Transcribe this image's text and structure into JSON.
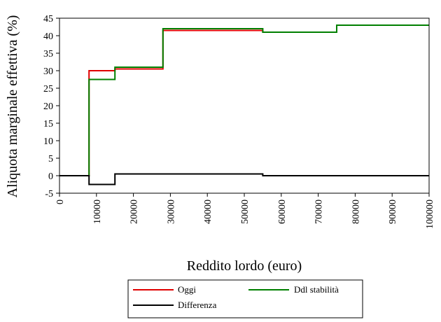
{
  "chart_data": {
    "type": "line",
    "step": true,
    "title": "",
    "xlabel": "Reddito lordo (euro)",
    "ylabel": "Aliquota marginale effettiva (%)",
    "xlim": [
      0,
      100000
    ],
    "ylim": [
      -5,
      45
    ],
    "x_ticks": [
      0,
      10000,
      20000,
      30000,
      40000,
      50000,
      60000,
      70000,
      80000,
      90000,
      100000
    ],
    "y_ticks": [
      -5,
      0,
      5,
      10,
      15,
      20,
      25,
      30,
      35,
      40,
      45
    ],
    "grid": false,
    "legend_position": "bottom",
    "series": [
      {
        "name": "Oggi",
        "color": "#e00000",
        "x": [
          0,
          8000,
          8000,
          15000,
          15000,
          28000,
          28000,
          55000,
          55000,
          75000,
          75000,
          100000
        ],
        "y": [
          0,
          0,
          30,
          30,
          30.5,
          30.5,
          41.5,
          41.5,
          41,
          41,
          43,
          43
        ]
      },
      {
        "name": "Ddl stabilità",
        "color": "#008000",
        "x": [
          0,
          8000,
          8000,
          15000,
          15000,
          28000,
          28000,
          55000,
          55000,
          75000,
          75000,
          100000
        ],
        "y": [
          0,
          0,
          27.5,
          27.5,
          31,
          31,
          42,
          42,
          41,
          41,
          43,
          43
        ]
      },
      {
        "name": "Differenza",
        "color": "#000000",
        "x": [
          0,
          8000,
          8000,
          15000,
          15000,
          28000,
          28000,
          55000,
          55000,
          100000
        ],
        "y": [
          0,
          0,
          -2.5,
          -2.5,
          0.5,
          0.5,
          0.5,
          0.5,
          0,
          0
        ]
      }
    ]
  }
}
